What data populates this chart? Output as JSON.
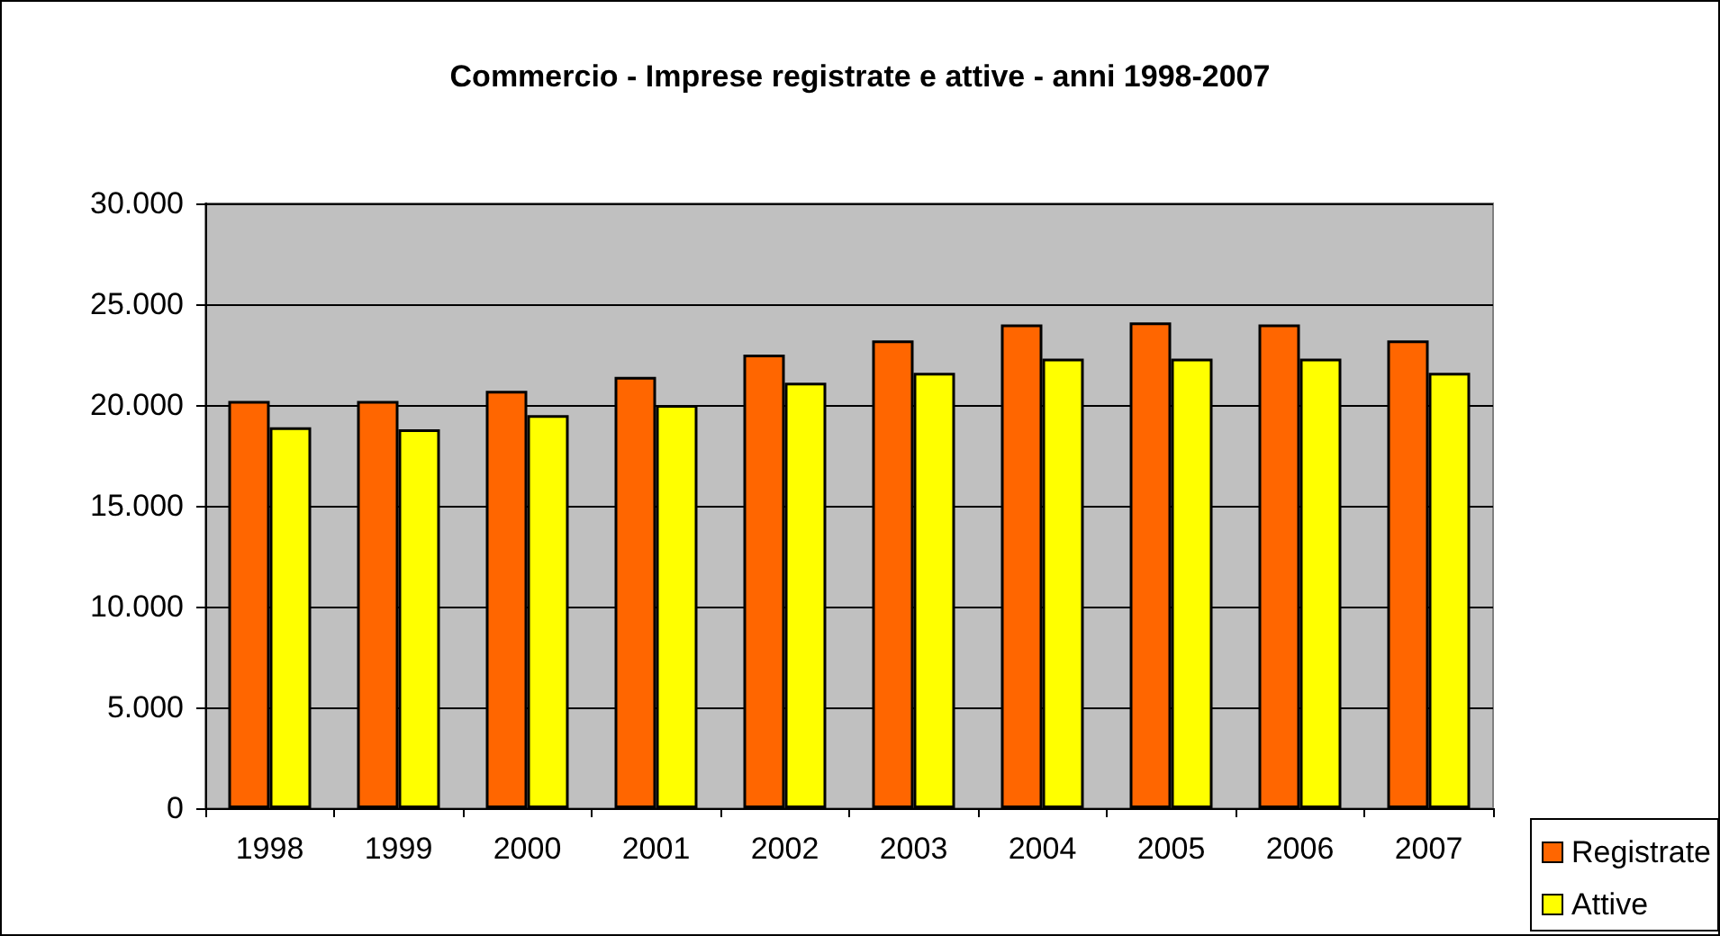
{
  "chart_data": {
    "type": "bar",
    "title": "Commercio - Imprese registrate e attive - anni 1998-2007",
    "categories": [
      "1998",
      "1999",
      "2000",
      "2001",
      "2002",
      "2003",
      "2004",
      "2005",
      "2006",
      "2007"
    ],
    "series": [
      {
        "name": "Registrate",
        "color": "#ff6600",
        "values": [
          20200,
          20200,
          20700,
          21400,
          22500,
          23200,
          24000,
          24100,
          24000,
          23200
        ]
      },
      {
        "name": "Attive",
        "color": "#ffff00",
        "values": [
          18900,
          18800,
          19500,
          20000,
          21100,
          21600,
          22300,
          22300,
          22300,
          21600
        ]
      }
    ],
    "ylim": [
      0,
      30000
    ],
    "yticks": [
      {
        "value": 0,
        "label": "0"
      },
      {
        "value": 5000,
        "label": "5.000"
      },
      {
        "value": 10000,
        "label": "10.000"
      },
      {
        "value": 15000,
        "label": "15.000"
      },
      {
        "value": 20000,
        "label": "20.000"
      },
      {
        "value": 25000,
        "label": "25.000"
      },
      {
        "value": 30000,
        "label": "30.000"
      }
    ],
    "grid": "y",
    "legend": "bottom right"
  }
}
